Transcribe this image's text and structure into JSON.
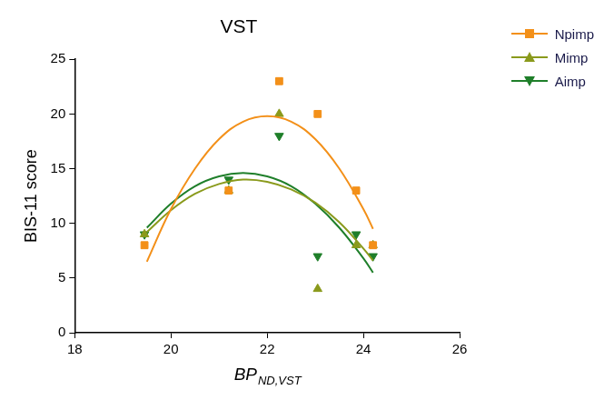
{
  "chart_data": {
    "type": "scatter",
    "title": "VST",
    "x_label": {
      "text": "BP",
      "subscript": "ND,VST"
    },
    "y_label": "BIS-11 score",
    "x": [
      19.45,
      21.2,
      22.25,
      23.05,
      23.85,
      24.2
    ],
    "fit_x": [
      19.5,
      20,
      20.5,
      21,
      21.5,
      22,
      22.5,
      23,
      23.5,
      24,
      24.2
    ],
    "series": [
      {
        "name": "Npimp",
        "color": "#f39019",
        "marker": "square",
        "values": [
          8,
          13,
          23,
          20,
          13,
          8
        ],
        "fit_values": [
          6.5,
          11.3,
          15.0,
          17.7,
          19.3,
          19.8,
          19.3,
          17.7,
          15.0,
          11.3,
          9.5
        ]
      },
      {
        "name": "Mimp",
        "color": "#8a9a1c",
        "marker": "triangle",
        "values": [
          9,
          13,
          20,
          4,
          8,
          8
        ],
        "fit_values": [
          9.2,
          11.2,
          12.7,
          13.6,
          14.0,
          13.8,
          13.1,
          11.9,
          10.1,
          7.7,
          6.6
        ]
      },
      {
        "name": "Aimp",
        "color": "#1f7f2a",
        "marker": "triangle-down",
        "values": [
          9,
          14,
          18,
          7,
          9,
          7
        ],
        "fit_values": [
          9.6,
          11.8,
          13.4,
          14.3,
          14.6,
          14.3,
          13.4,
          11.8,
          9.6,
          6.8,
          5.5
        ]
      }
    ],
    "xlim": [
      18,
      26
    ],
    "xticks": [
      18,
      20,
      22,
      24,
      26
    ],
    "ylim": [
      0,
      25
    ],
    "yticks": [
      0,
      5,
      10,
      15,
      20,
      25
    ],
    "grid": false,
    "legend": "top-right"
  }
}
